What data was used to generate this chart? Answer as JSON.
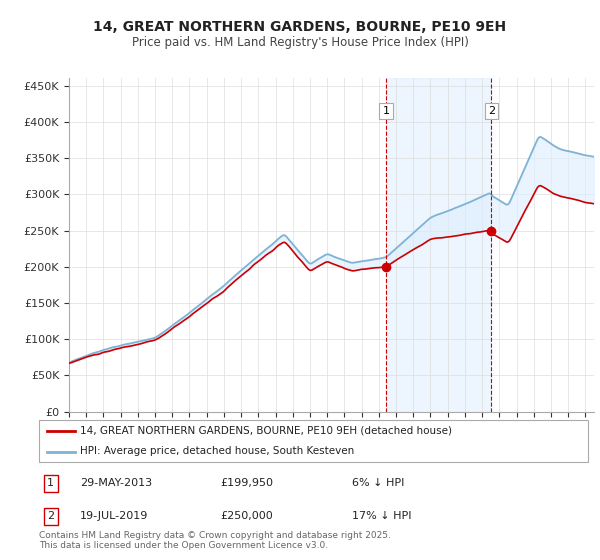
{
  "title": "14, GREAT NORTHERN GARDENS, BOURNE, PE10 9EH",
  "subtitle": "Price paid vs. HM Land Registry's House Price Index (HPI)",
  "ylabel_ticks": [
    "£0",
    "£50K",
    "£100K",
    "£150K",
    "£200K",
    "£250K",
    "£300K",
    "£350K",
    "£400K",
    "£450K"
  ],
  "ytick_values": [
    0,
    50000,
    100000,
    150000,
    200000,
    250000,
    300000,
    350000,
    400000,
    450000
  ],
  "ylim": [
    0,
    460000
  ],
  "xlim_start": 1995.0,
  "xlim_end": 2025.5,
  "legend_property": "14, GREAT NORTHERN GARDENS, BOURNE, PE10 9EH (detached house)",
  "legend_hpi": "HPI: Average price, detached house, South Kesteven",
  "sale1_date": "29-MAY-2013",
  "sale1_price": 199950,
  "sale1_x": 2013.41,
  "sale2_date": "19-JUL-2019",
  "sale2_price": 250000,
  "sale2_x": 2019.54,
  "sale1_pct": "6% ↓ HPI",
  "sale2_pct": "17% ↓ HPI",
  "footer": "Contains HM Land Registry data © Crown copyright and database right 2025.\nThis data is licensed under the Open Government Licence v3.0.",
  "property_color": "#cc0000",
  "hpi_color": "#7fb3d3",
  "hpi_fill_color": "#ddeeff",
  "marker_vline_color": "#cc0000",
  "background_color": "#ffffff",
  "grid_color": "#dddddd"
}
